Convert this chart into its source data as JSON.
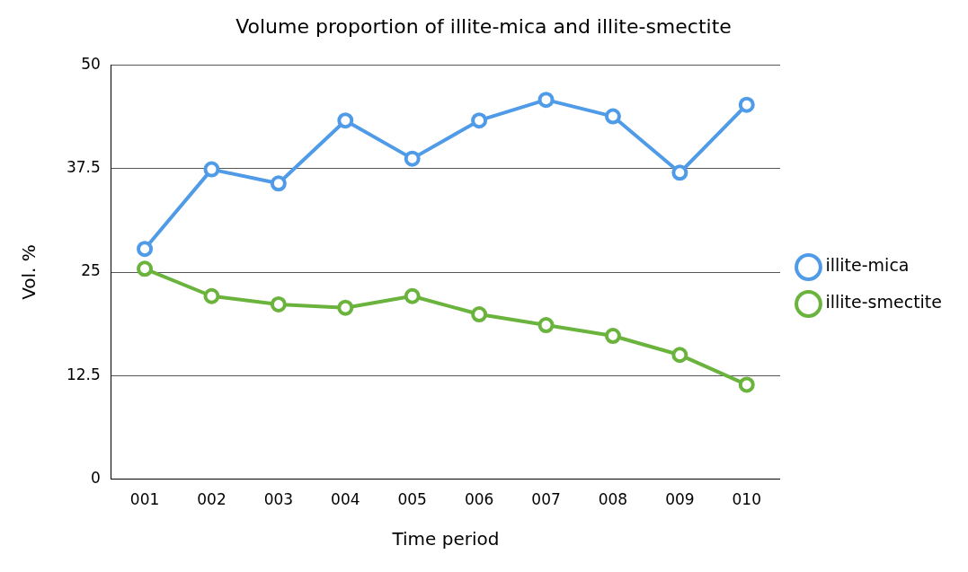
{
  "chart_data": {
    "type": "line",
    "title": "Volume proportion of illite-mica and illite-smectite",
    "xlabel": "Time period",
    "ylabel": "Vol. %",
    "categories": [
      "001",
      "002",
      "003",
      "004",
      "005",
      "006",
      "007",
      "008",
      "009",
      "010"
    ],
    "series": [
      {
        "name": "illite-mica",
        "color": "#4f9be8",
        "values": [
          27.8,
          37.4,
          35.7,
          43.3,
          38.7,
          43.3,
          45.8,
          43.8,
          37.0,
          45.2
        ]
      },
      {
        "name": "illite-smectite",
        "color": "#6ab33c",
        "values": [
          25.4,
          22.1,
          21.1,
          20.7,
          22.1,
          19.9,
          18.6,
          17.3,
          15.0,
          11.4
        ]
      }
    ],
    "ylim": [
      0,
      50
    ],
    "yticks": [
      0,
      12.5,
      25,
      37.5,
      50
    ],
    "grid": "y",
    "legend": "right",
    "marker": "circle",
    "line_style": "solid"
  }
}
